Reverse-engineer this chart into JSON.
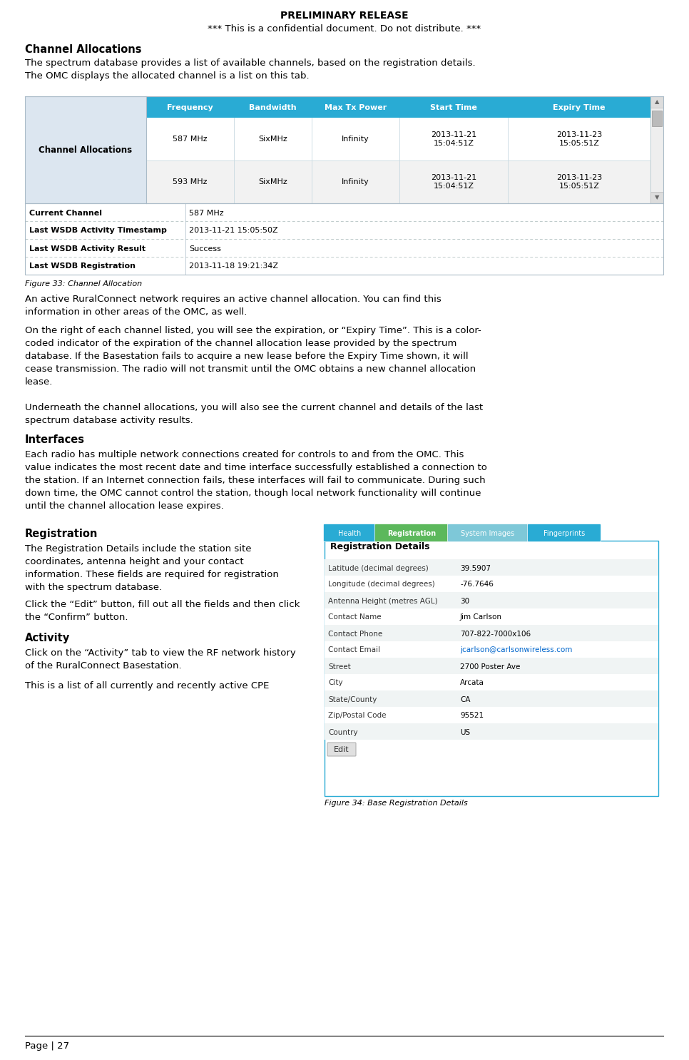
{
  "header_line1": "PRELIMINARY RELEASE",
  "header_line2": "*** This is a confidential document. Do not distribute. ***",
  "section1_title": "Channel Allocations",
  "section1_body": "The spectrum database provides a list of available channels, based on the registration details.\nThe OMC displays the allocated channel is a list on this tab.",
  "table_header_cols": [
    "Frequency",
    "Bandwidth",
    "Max Tx Power",
    "Start Time",
    "Expiry Time"
  ],
  "table_header_bg": "#29ABD4",
  "table_left_label": "Channel Allocations",
  "table_left_bg": "#DCE6F0",
  "table_row1": [
    "587 MHz",
    "SixMHz",
    "Infinity",
    "2013-11-21\n15:04:51Z",
    "2013-11-23\n15:05:51Z"
  ],
  "table_row2": [
    "593 MHz",
    "SixMHz",
    "Infinity",
    "2013-11-21\n15:04:51Z",
    "2013-11-23\n15:05:51Z"
  ],
  "bottom_rows": [
    [
      "Current Channel",
      "587 MHz"
    ],
    [
      "Last WSDB Activity Timestamp",
      "2013-11-21 15:05:50Z"
    ],
    [
      "Last WSDB Activity Result",
      "Success"
    ],
    [
      "Last WSDB Registration",
      "2013-11-18 19:21:34Z"
    ]
  ],
  "figure33_caption": "Figure 33: Channel Allocation",
  "para1": "An active RuralConnect network requires an active channel allocation. You can find this\ninformation in other areas of the OMC, as well.",
  "para2": "On the right of each channel listed, you will see the expiration, or “Expiry Time”. This is a color-\ncoded indicator of the expiration of the channel allocation lease provided by the spectrum\ndatabase. If the Basestation fails to acquire a new lease before the Expiry Time shown, it will\ncease transmission. The radio will not transmit until the OMC obtains a new channel allocation\nlease.",
  "para3": "Underneath the channel allocations, you will also see the current channel and details of the last\nspectrum database activity results.",
  "section2_title": "Interfaces",
  "section2_body": "Each radio has multiple network connections created for controls to and from the OMC. This\nvalue indicates the most recent date and time interface successfully established a connection to\nthe station. If an Internet connection fails, these interfaces will fail to communicate. During such\ndown time, the OMC cannot control the station, though local network functionality will continue\nuntil the channel allocation lease expires.",
  "section3_title": "Registration",
  "section3_body1": "The Registration Details include the station site\ncoordinates, antenna height and your contact\ninformation. These fields are required for registration\nwith the spectrum database.",
  "section3_body2": "Click the “Edit” button, fill out all the fields and then click\nthe “Confirm” button.",
  "section4_title": "Activity",
  "section4_body": "Click on the “Activity” tab to view the RF network history\nof the RuralConnect Basestation.",
  "section4_body2": "This is a list of all currently and recently active CPE",
  "figure34_caption": "Figure 34: Base Registration Details",
  "reg_tabs": [
    "Health",
    "Registration",
    "System Images",
    "Fingerprints"
  ],
  "reg_tab_colors": [
    "#29ABD4",
    "#5CB85C",
    "#7EC8D8",
    "#29ABD4"
  ],
  "reg_details_title": "Registration Details",
  "reg_details_rows": [
    [
      "Latitude (decimal degrees)",
      "39.5907"
    ],
    [
      "Longitude (decimal degrees)",
      "-76.7646"
    ],
    [
      "Antenna Height (metres AGL)",
      "30"
    ],
    [
      "Contact Name",
      "Jim Carlson"
    ],
    [
      "Contact Phone",
      "707-822-7000x106"
    ],
    [
      "Contact Email",
      "jcarlson@carlsonwireless.com"
    ],
    [
      "Street",
      "2700 Poster Ave"
    ],
    [
      "City",
      "Arcata"
    ],
    [
      "State/County",
      "CA"
    ],
    [
      "Zip/Postal Code",
      "95521"
    ],
    [
      "Country",
      "US"
    ]
  ],
  "reg_edit_btn": "Edit",
  "page_footer": "Page | 27",
  "bg_color": "#FFFFFF",
  "text_color": "#000000",
  "contact_email_color": "#0066CC"
}
